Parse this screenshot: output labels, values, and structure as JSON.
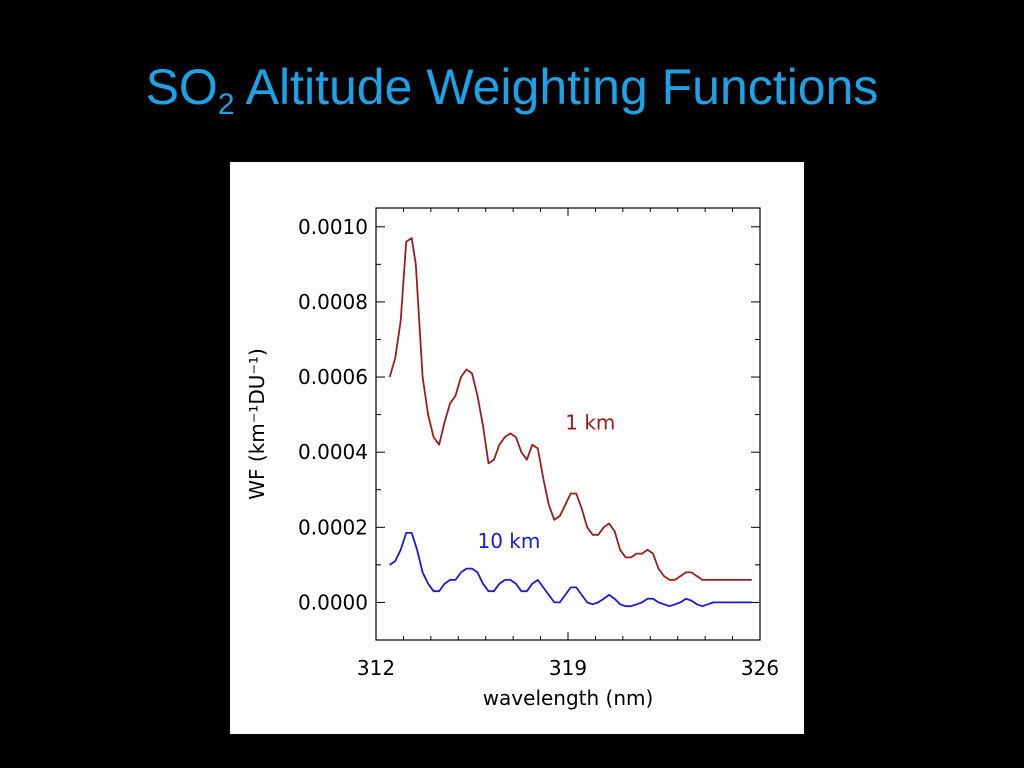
{
  "slide": {
    "title_main": "SO",
    "title_sub": "2",
    "title_rest": " Altitude Weighting Functions"
  },
  "chart_data": {
    "type": "line",
    "xlabel": "wavelength (nm)",
    "ylabel": "WF (km⁻¹DU⁻¹)",
    "xlim": [
      312,
      326
    ],
    "ylim": [
      -0.0001,
      0.00105
    ],
    "xticks": [
      312,
      319,
      326
    ],
    "xtick_labels": [
      "312",
      "319",
      "326"
    ],
    "yticks": [
      0.0,
      0.0002,
      0.0004,
      0.0006,
      0.0008,
      0.001
    ],
    "ytick_labels": [
      "0.0000",
      "0.0002",
      "0.0004",
      "0.0006",
      "0.0008",
      "0.0010"
    ],
    "grid": false,
    "series": [
      {
        "name": "1 km",
        "color": "#a01b1b",
        "label_at": [
          318.9,
          0.00046
        ],
        "x": [
          312.5,
          312.7,
          312.9,
          313.1,
          313.3,
          313.45,
          313.7,
          313.9,
          314.1,
          314.3,
          314.5,
          314.7,
          314.9,
          315.1,
          315.3,
          315.5,
          315.7,
          315.9,
          316.1,
          316.3,
          316.5,
          316.7,
          316.9,
          317.1,
          317.3,
          317.5,
          317.7,
          317.9,
          318.1,
          318.3,
          318.5,
          318.7,
          318.9,
          319.1,
          319.3,
          319.5,
          319.7,
          319.9,
          320.1,
          320.3,
          320.5,
          320.7,
          320.9,
          321.1,
          321.3,
          321.5,
          321.7,
          321.9,
          322.1,
          322.3,
          322.5,
          322.7,
          322.9,
          323.1,
          323.3,
          323.5,
          323.7,
          323.9,
          324.1,
          324.3,
          324.5,
          324.7,
          324.9,
          325.1,
          325.3,
          325.5,
          325.7
        ],
        "y": [
          0.0006,
          0.00065,
          0.00075,
          0.00096,
          0.00097,
          0.0009,
          0.0006,
          0.0005,
          0.00044,
          0.00042,
          0.00048,
          0.00053,
          0.00055,
          0.0006,
          0.00062,
          0.00061,
          0.00055,
          0.00047,
          0.00037,
          0.00038,
          0.00042,
          0.00044,
          0.00045,
          0.00044,
          0.0004,
          0.00038,
          0.00042,
          0.00041,
          0.00033,
          0.00026,
          0.00022,
          0.00023,
          0.00026,
          0.00029,
          0.00029,
          0.00025,
          0.0002,
          0.00018,
          0.00018,
          0.0002,
          0.00021,
          0.00019,
          0.00014,
          0.00012,
          0.00012,
          0.00013,
          0.00013,
          0.00014,
          0.00013,
          9e-05,
          7e-05,
          6e-05,
          6e-05,
          7e-05,
          8e-05,
          8e-05,
          7e-05,
          6e-05,
          6e-05,
          6e-05,
          6e-05,
          6e-05,
          6e-05,
          6e-05,
          6e-05,
          6e-05,
          6e-05
        ]
      },
      {
        "name": "10 km",
        "color": "#1a1adb",
        "label_at": [
          315.7,
          0.000145
        ],
        "x": [
          312.5,
          312.7,
          312.9,
          313.1,
          313.3,
          313.5,
          313.7,
          313.9,
          314.1,
          314.3,
          314.5,
          314.7,
          314.9,
          315.1,
          315.3,
          315.5,
          315.7,
          315.9,
          316.1,
          316.3,
          316.5,
          316.7,
          316.9,
          317.1,
          317.3,
          317.5,
          317.7,
          317.9,
          318.1,
          318.3,
          318.5,
          318.7,
          318.9,
          319.1,
          319.3,
          319.5,
          319.7,
          319.9,
          320.1,
          320.3,
          320.5,
          320.7,
          320.9,
          321.1,
          321.3,
          321.5,
          321.7,
          321.9,
          322.1,
          322.3,
          322.5,
          322.7,
          322.9,
          323.1,
          323.3,
          323.5,
          323.7,
          323.9,
          324.1,
          324.3,
          324.5,
          324.7,
          324.9,
          325.1,
          325.3,
          325.5,
          325.7
        ],
        "y": [
          0.0001,
          0.00011,
          0.00014,
          0.000185,
          0.000185,
          0.00014,
          8e-05,
          5e-05,
          3e-05,
          3e-05,
          5e-05,
          6e-05,
          6e-05,
          8e-05,
          9e-05,
          9e-05,
          8e-05,
          5e-05,
          3e-05,
          3e-05,
          5e-05,
          6e-05,
          6e-05,
          5e-05,
          3e-05,
          3e-05,
          5e-05,
          6e-05,
          4e-05,
          2e-05,
          0.0,
          0.0,
          2e-05,
          4e-05,
          4e-05,
          2e-05,
          0.0,
          -5e-06,
          0.0,
          1e-05,
          2e-05,
          1e-05,
          -5e-06,
          -1e-05,
          -1e-05,
          -5e-06,
          0.0,
          1e-05,
          1e-05,
          0.0,
          -5e-06,
          -1e-05,
          -5e-06,
          0.0,
          1e-05,
          5e-06,
          -5e-06,
          -1e-05,
          -5e-06,
          0.0,
          0.0,
          0.0,
          0.0,
          0.0,
          0.0,
          0.0,
          0.0
        ]
      }
    ]
  }
}
